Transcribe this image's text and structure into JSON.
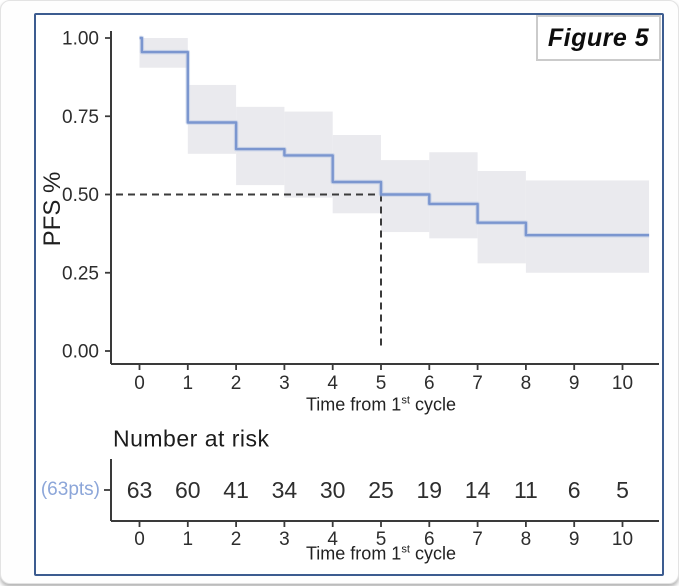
{
  "figure": {
    "label": "Figure 5"
  },
  "colors": {
    "curve": "#7b96cf",
    "curve_halo": "#b3c2e4",
    "ci_band": "#eaeaee",
    "axis": "#3a3a3a",
    "dashed": "#3b3b3b",
    "tick_text": "#2d2d2d",
    "risk_value_text": "#2e2e2e",
    "group_label": "#8ca6d9",
    "panel_border": "#3c5c90"
  },
  "chart_data": {
    "type": "line",
    "subtype": "kaplan-meier-step",
    "title": "Figure 5",
    "xlabel": "Time from 1st cycle",
    "ylabel": "PFS %",
    "xlabel_parts": {
      "pre": "Time from 1",
      "sup": "st",
      "post": " cycle"
    },
    "x_ticks": [
      0,
      1,
      2,
      3,
      4,
      5,
      6,
      7,
      8,
      9,
      10
    ],
    "y_ticks": [
      "0.00",
      "0.25",
      "0.50",
      "0.75",
      "1.00"
    ],
    "y_tick_values": [
      0.0,
      0.25,
      0.5,
      0.75,
      1.0
    ],
    "xlim": [
      -0.6,
      10.75
    ],
    "ylim": [
      0.0,
      1.0
    ],
    "grid": false,
    "legend": "none",
    "series": [
      {
        "name": "PFS",
        "color": "#7b96cf",
        "step_points": [
          [
            0,
            1.0
          ],
          [
            0.05,
            1.0
          ],
          [
            0.05,
            0.955
          ],
          [
            1,
            0.955
          ],
          [
            1,
            0.73
          ],
          [
            2,
            0.73
          ],
          [
            2,
            0.645
          ],
          [
            3,
            0.645
          ],
          [
            3,
            0.625
          ],
          [
            4,
            0.625
          ],
          [
            4,
            0.54
          ],
          [
            5,
            0.54
          ],
          [
            5,
            0.5
          ],
          [
            6,
            0.5
          ],
          [
            6,
            0.47
          ],
          [
            7,
            0.47
          ],
          [
            7,
            0.41
          ],
          [
            8,
            0.41
          ],
          [
            8,
            0.37
          ],
          [
            10.55,
            0.37
          ]
        ]
      }
    ],
    "ci_band_segments": [
      [
        0,
        1,
        0.905,
        1.0
      ],
      [
        1,
        2,
        0.63,
        0.85
      ],
      [
        2,
        3,
        0.53,
        0.78
      ],
      [
        3,
        4,
        0.49,
        0.765
      ],
      [
        4,
        5,
        0.44,
        0.69
      ],
      [
        5,
        6,
        0.38,
        0.61
      ],
      [
        6,
        7,
        0.36,
        0.635
      ],
      [
        7,
        8,
        0.28,
        0.575
      ],
      [
        8,
        10.55,
        0.25,
        0.545
      ]
    ],
    "median_reference": {
      "x": 5,
      "y": 0.5
    },
    "number_at_risk": {
      "title": "Number at risk",
      "group_label": "(63pts)",
      "times": [
        0,
        1,
        2,
        3,
        4,
        5,
        6,
        7,
        8,
        9,
        10
      ],
      "values": [
        63,
        60,
        41,
        34,
        30,
        25,
        19,
        14,
        11,
        6,
        5
      ]
    }
  }
}
